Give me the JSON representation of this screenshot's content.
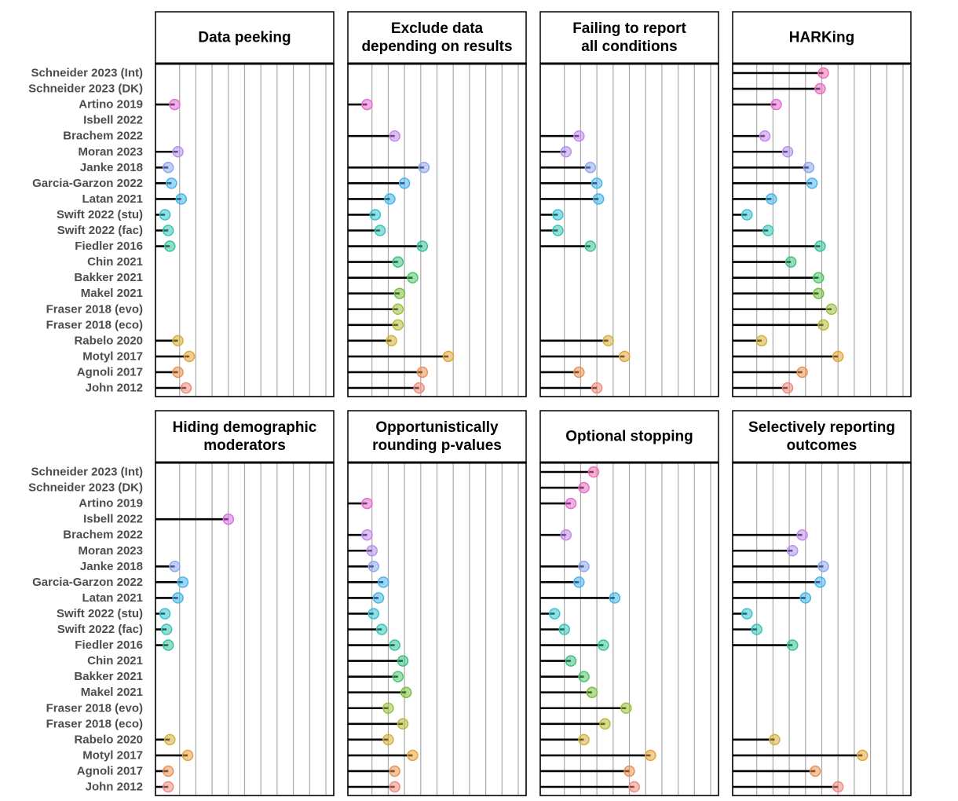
{
  "chart_data": {
    "type": "lollipop",
    "layout": "facet grid, 2 rows x 4 columns",
    "x_range": [
      0,
      1
    ],
    "x_grid": "vertical gridlines every 0.1",
    "studies": [
      "Schneider 2023 (Int)",
      "Schneider 2023 (DK)",
      "Artino 2019",
      "Isbell 2022",
      "Brachem 2022",
      "Moran 2023",
      "Janke 2018",
      "Garcia-Garzon 2022",
      "Latan 2021",
      "Swift 2022 (stu)",
      "Swift 2022 (fac)",
      "Fiedler 2016",
      "Chin 2021",
      "Bakker 2021",
      "Makel 2021",
      "Fraser 2018 (evo)",
      "Fraser 2018 (eco)",
      "Rabelo 2020",
      "Motyl  2017",
      "Agnoli 2017",
      "John 2012"
    ],
    "study_colors": [
      "#ee70b2",
      "#e46fc1",
      "#e26fd0",
      "#db6fe2",
      "#c588eb",
      "#b392ea",
      "#8ea8f0",
      "#4cb5ee",
      "#43b6e5",
      "#36c4cf",
      "#36c4b7",
      "#35c39a",
      "#3ec080",
      "#4ec66b",
      "#79bf3f",
      "#9cc03e",
      "#b8bb3a",
      "#d4b13e",
      "#e2a43b",
      "#ea9256",
      "#ee8a7e"
    ],
    "panels": [
      {
        "title_lines": [
          "Data peeking"
        ],
        "values": [
          null,
          null,
          0.07,
          null,
          null,
          0.09,
          0.03,
          0.05,
          0.11,
          0.01,
          0.03,
          0.04,
          null,
          null,
          null,
          null,
          null,
          0.09,
          0.16,
          0.09,
          0.14
        ]
      },
      {
        "title_lines": [
          "Exclude data",
          "depending on results"
        ],
        "values": [
          null,
          null,
          0.07,
          null,
          0.24,
          null,
          0.42,
          0.3,
          0.21,
          0.12,
          0.15,
          0.41,
          0.26,
          0.35,
          0.27,
          0.26,
          0.26,
          0.22,
          0.57,
          0.41,
          0.39
        ]
      },
      {
        "title_lines": [
          "Failing to report",
          "all conditions"
        ],
        "values": [
          null,
          null,
          null,
          null,
          0.19,
          0.11,
          0.26,
          0.3,
          0.31,
          0.06,
          0.06,
          0.26,
          null,
          null,
          null,
          null,
          null,
          0.37,
          0.47,
          0.19,
          0.3
        ]
      },
      {
        "title_lines": [
          "HARKing"
        ],
        "values": [
          0.51,
          0.49,
          0.22,
          null,
          0.15,
          0.29,
          0.42,
          0.44,
          0.19,
          0.04,
          0.17,
          0.49,
          0.31,
          0.48,
          0.48,
          0.56,
          0.51,
          0.13,
          0.6,
          0.38,
          0.29
        ]
      },
      {
        "title_lines": [
          "Hiding demographic",
          "moderators"
        ],
        "values": [
          null,
          null,
          null,
          0.4,
          null,
          null,
          0.07,
          0.12,
          0.09,
          0.01,
          0.02,
          0.03,
          null,
          null,
          null,
          null,
          null,
          0.04,
          0.15,
          0.03,
          0.03
        ]
      },
      {
        "title_lines": [
          "Opportunistically",
          "rounding p-values"
        ],
        "values": [
          null,
          null,
          0.07,
          null,
          0.07,
          0.1,
          0.11,
          0.17,
          0.14,
          0.11,
          0.16,
          0.24,
          0.29,
          0.26,
          0.31,
          0.2,
          0.29,
          0.2,
          0.35,
          0.24,
          0.24
        ]
      },
      {
        "title_lines": [
          "Optional stopping"
        ],
        "values": [
          0.28,
          0.22,
          0.14,
          null,
          0.11,
          null,
          0.22,
          0.19,
          0.41,
          0.04,
          0.1,
          0.34,
          0.14,
          0.22,
          0.27,
          0.48,
          0.35,
          0.22,
          0.63,
          0.5,
          0.53
        ]
      },
      {
        "title_lines": [
          "Selectively reporting",
          "outcomes"
        ],
        "values": [
          null,
          null,
          null,
          null,
          0.38,
          0.32,
          0.51,
          0.49,
          0.4,
          0.04,
          0.1,
          0.32,
          null,
          null,
          null,
          null,
          null,
          0.21,
          0.75,
          0.46,
          0.6
        ]
      }
    ]
  }
}
